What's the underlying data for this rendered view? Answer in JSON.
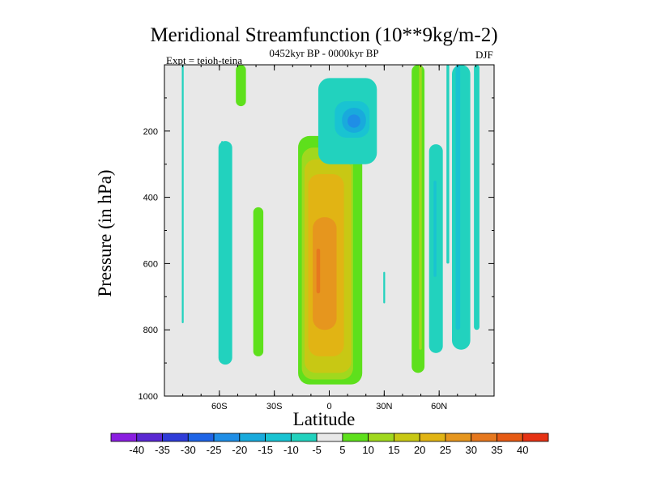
{
  "chart_data": {
    "type": "heatmap",
    "title": "Meridional Streamfunction (10**9kg/m-2)",
    "subtitle": "0452kyr BP - 0000kyr BP",
    "experiment_label": "Expt = teioh-teina",
    "season_label": "DJF",
    "xlabel": "Latitude",
    "ylabel": "Pressure (in hPa)",
    "x_range": [
      -90,
      90
    ],
    "y_range": [
      0,
      1000
    ],
    "y_inverted": true,
    "x_ticks": [
      {
        "value": -60,
        "label": "60S"
      },
      {
        "value": -30,
        "label": "30S"
      },
      {
        "value": 0,
        "label": "0"
      },
      {
        "value": 30,
        "label": "30N"
      },
      {
        "value": 60,
        "label": "60N"
      }
    ],
    "y_ticks": [
      {
        "value": 200,
        "label": "200"
      },
      {
        "value": 400,
        "label": "400"
      },
      {
        "value": 600,
        "label": "600"
      },
      {
        "value": 800,
        "label": "800"
      },
      {
        "value": 1000,
        "label": "1000"
      }
    ],
    "background_color": "#e8e8e8",
    "colorbar": {
      "labels": [
        "-40",
        "-35",
        "-30",
        "-25",
        "-20",
        "-15",
        "-10",
        "-5",
        "5",
        "10",
        "15",
        "20",
        "25",
        "30",
        "35",
        "40"
      ],
      "colors": [
        "#8a1ee0",
        "#5a28d2",
        "#2f3cd8",
        "#1e64e6",
        "#1f8ee6",
        "#19aadc",
        "#19c3d2",
        "#22d2be",
        "#e8e8e8",
        "#5ee01c",
        "#a0d81e",
        "#c8c814",
        "#e1b414",
        "#e6961e",
        "#e6781e",
        "#e65a14",
        "#e63214"
      ]
    },
    "regions": [
      {
        "id": "cell-1",
        "level": -5,
        "color": "#22d2be",
        "lat": [
          -80.5,
          -79.5
        ],
        "p": [
          0,
          780
        ]
      },
      {
        "id": "cell-2",
        "level": -5,
        "color": "#22d2be",
        "lat": [
          -60.5,
          -53
        ],
        "p": [
          230,
          905
        ]
      },
      {
        "id": "cell-3",
        "level": -5,
        "color": "#22d2be",
        "lat": [
          -59,
          -58
        ],
        "p": [
          230,
          260
        ]
      },
      {
        "id": "cell-4",
        "level": 5,
        "color": "#5ee01c",
        "lat": [
          -41.5,
          -36
        ],
        "p": [
          430,
          880
        ]
      },
      {
        "id": "cell-5",
        "level": 5,
        "color": "#5ee01c",
        "lat": [
          -51,
          -45.5
        ],
        "p": [
          0,
          125
        ]
      },
      {
        "id": "cell-6",
        "level": 5,
        "color": "#5ee01c",
        "lat": [
          -17,
          18
        ],
        "p": [
          215,
          965
        ]
      },
      {
        "id": "cell-7",
        "level": 10,
        "color": "#a0d81e",
        "lat": [
          -15,
          13
        ],
        "p": [
          250,
          950
        ]
      },
      {
        "id": "cell-8",
        "level": 15,
        "color": "#c8c814",
        "lat": [
          -13.5,
          12
        ],
        "p": [
          285,
          930
        ]
      },
      {
        "id": "cell-9",
        "level": 20,
        "color": "#e1b414",
        "lat": [
          -11.5,
          8
        ],
        "p": [
          330,
          880
        ]
      },
      {
        "id": "cell-10",
        "level": 25,
        "color": "#e6961e",
        "lat": [
          -9,
          4
        ],
        "p": [
          460,
          800
        ]
      },
      {
        "id": "cell-11",
        "level": 30,
        "color": "#e6781e",
        "lat": [
          -7,
          -5
        ],
        "p": [
          555,
          690
        ]
      },
      {
        "id": "cell-12",
        "level": -5,
        "color": "#22d2be",
        "lat": [
          -6,
          26
        ],
        "p": [
          40,
          300
        ]
      },
      {
        "id": "cell-13",
        "level": -10,
        "color": "#19c3d2",
        "lat": [
          3,
          22
        ],
        "p": [
          110,
          220
        ]
      },
      {
        "id": "cell-14",
        "level": -15,
        "color": "#19aadc",
        "lat": [
          7,
          20
        ],
        "p": [
          130,
          205
        ]
      },
      {
        "id": "cell-15",
        "level": -20,
        "color": "#1f8ee6",
        "lat": [
          10,
          17
        ],
        "p": [
          150,
          190
        ]
      },
      {
        "id": "cell-16",
        "level": -5,
        "color": "#22d2be",
        "lat": [
          29.5,
          30.5
        ],
        "p": [
          625,
          720
        ]
      },
      {
        "id": "cell-17",
        "level": 5,
        "color": "#5ee01c",
        "lat": [
          45,
          52
        ],
        "p": [
          0,
          930
        ]
      },
      {
        "id": "cell-18",
        "level": 10,
        "color": "#a0d81e",
        "lat": [
          49,
          50.5
        ],
        "p": [
          0,
          860
        ]
      },
      {
        "id": "cell-19",
        "level": -5,
        "color": "#22d2be",
        "lat": [
          54.5,
          62
        ],
        "p": [
          240,
          870
        ]
      },
      {
        "id": "cell-20",
        "level": -10,
        "color": "#19c3d2",
        "lat": [
          57,
          58.5
        ],
        "p": [
          350,
          640
        ]
      },
      {
        "id": "cell-21",
        "level": -5,
        "color": "#22d2be",
        "lat": [
          64,
          65.5
        ],
        "p": [
          0,
          600
        ]
      },
      {
        "id": "cell-22",
        "level": -5,
        "color": "#22d2be",
        "lat": [
          67,
          77
        ],
        "p": [
          0,
          860
        ]
      },
      {
        "id": "cell-23",
        "level": -10,
        "color": "#19c3d2",
        "lat": [
          69,
          71.5
        ],
        "p": [
          0,
          800
        ]
      },
      {
        "id": "cell-24",
        "level": -5,
        "color": "#22d2be",
        "lat": [
          79,
          82
        ],
        "p": [
          0,
          800
        ]
      }
    ]
  }
}
